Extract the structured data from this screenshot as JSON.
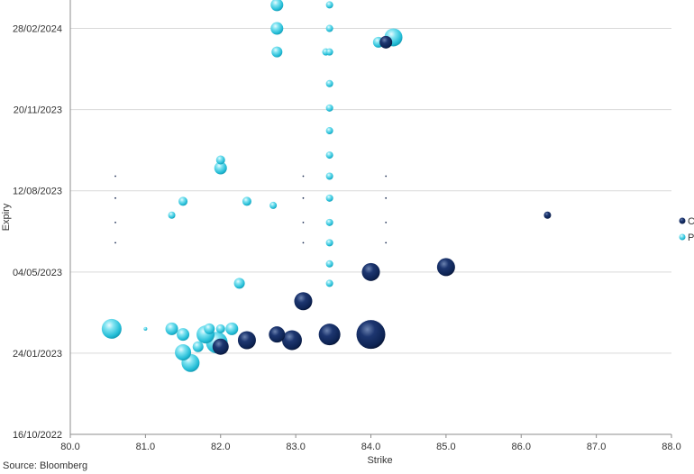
{
  "source": "Source: Bloomberg",
  "chart_data": {
    "type": "bubble",
    "title": "",
    "xlabel": "Strike",
    "ylabel": "Expiry",
    "xlim": [
      80.0,
      88.0
    ],
    "x_ticks": [
      "80.0",
      "81.0",
      "82.0",
      "83.0",
      "84.0",
      "85.0",
      "86.0",
      "87.0",
      "88.0"
    ],
    "y_ticks": [
      "16/10/2022",
      "24/01/2023",
      "04/05/2023",
      "12/08/2023",
      "20/11/2023",
      "28/02/2024"
    ],
    "grid": "horizontal",
    "legend_position": "right",
    "colors": {
      "C": "#0d2353",
      "P": "#2ec5dc",
      "grid": "#d9d9d9",
      "axis": "#8c8c8c"
    },
    "series": [
      {
        "name": "C",
        "points": [
          {
            "x": 82.0,
            "y": "2023-02-01",
            "size": 9
          },
          {
            "x": 82.35,
            "y": "2023-02-09",
            "size": 10
          },
          {
            "x": 82.75,
            "y": "2023-02-16",
            "size": 9
          },
          {
            "x": 82.95,
            "y": "2023-02-09",
            "size": 11
          },
          {
            "x": 83.1,
            "y": "2023-03-29",
            "size": 10
          },
          {
            "x": 83.45,
            "y": "2023-02-16",
            "size": 12
          },
          {
            "x": 84.0,
            "y": "2023-02-16",
            "size": 16
          },
          {
            "x": 84.0,
            "y": "2023-05-04",
            "size": 10
          },
          {
            "x": 85.0,
            "y": "2023-05-10",
            "size": 10
          },
          {
            "x": 84.2,
            "y": "2024-02-11",
            "size": 7
          },
          {
            "x": 86.35,
            "y": "2023-07-13",
            "size": 4
          }
        ]
      },
      {
        "name": "P",
        "points": [
          {
            "x": 80.55,
            "y": "2023-02-23",
            "size": 11
          },
          {
            "x": 81.0,
            "y": "2023-02-23",
            "size": 2
          },
          {
            "x": 81.35,
            "y": "2023-02-23",
            "size": 7
          },
          {
            "x": 81.5,
            "y": "2023-02-16",
            "size": 7
          },
          {
            "x": 81.5,
            "y": "2023-01-25",
            "size": 9
          },
          {
            "x": 81.6,
            "y": "2023-01-12",
            "size": 10
          },
          {
            "x": 81.7,
            "y": "2023-02-01",
            "size": 6
          },
          {
            "x": 81.8,
            "y": "2023-02-16",
            "size": 10
          },
          {
            "x": 81.85,
            "y": "2023-02-23",
            "size": 6
          },
          {
            "x": 81.95,
            "y": "2023-02-06",
            "size": 12
          },
          {
            "x": 82.0,
            "y": "2023-02-23",
            "size": 5
          },
          {
            "x": 82.15,
            "y": "2023-02-23",
            "size": 7
          },
          {
            "x": 82.25,
            "y": "2023-04-20",
            "size": 6
          },
          {
            "x": 81.35,
            "y": "2023-07-13",
            "size": 4
          },
          {
            "x": 81.5,
            "y": "2023-07-30",
            "size": 5
          },
          {
            "x": 82.0,
            "y": "2023-09-09",
            "size": 7
          },
          {
            "x": 82.0,
            "y": "2023-09-19",
            "size": 5
          },
          {
            "x": 82.35,
            "y": "2023-07-30",
            "size": 5
          },
          {
            "x": 82.7,
            "y": "2023-07-25",
            "size": 4
          },
          {
            "x": 82.75,
            "y": "2023-02-16",
            "size": 6
          },
          {
            "x": 82.75,
            "y": "2024-01-30",
            "size": 6
          },
          {
            "x": 82.75,
            "y": "2024-02-28",
            "size": 7
          },
          {
            "x": 82.75,
            "y": "2024-03-28",
            "size": 7
          },
          {
            "x": 83.4,
            "y": "2024-01-30",
            "size": 4
          },
          {
            "x": 83.45,
            "y": "2024-03-28",
            "size": 4
          },
          {
            "x": 83.45,
            "y": "2024-02-28",
            "size": 4
          },
          {
            "x": 83.45,
            "y": "2024-01-30",
            "size": 4
          },
          {
            "x": 83.45,
            "y": "2023-12-22",
            "size": 4
          },
          {
            "x": 83.45,
            "y": "2023-11-22",
            "size": 4
          },
          {
            "x": 83.45,
            "y": "2023-10-25",
            "size": 4
          },
          {
            "x": 83.45,
            "y": "2023-09-25",
            "size": 4
          },
          {
            "x": 83.45,
            "y": "2023-08-30",
            "size": 4
          },
          {
            "x": 83.45,
            "y": "2023-08-03",
            "size": 4
          },
          {
            "x": 83.45,
            "y": "2023-07-04",
            "size": 4
          },
          {
            "x": 83.45,
            "y": "2023-06-09",
            "size": 4
          },
          {
            "x": 83.45,
            "y": "2023-05-14",
            "size": 4
          },
          {
            "x": 83.45,
            "y": "2023-04-20",
            "size": 4
          },
          {
            "x": 84.1,
            "y": "2024-02-11",
            "size": 6
          },
          {
            "x": 84.3,
            "y": "2024-02-17",
            "size": 10
          }
        ]
      }
    ],
    "minor_markers": [
      {
        "x": 80.6,
        "y": "2023-08-30"
      },
      {
        "x": 80.6,
        "y": "2023-08-03"
      },
      {
        "x": 80.6,
        "y": "2023-07-04"
      },
      {
        "x": 80.6,
        "y": "2023-06-09"
      },
      {
        "x": 83.1,
        "y": "2023-08-30"
      },
      {
        "x": 83.1,
        "y": "2023-08-03"
      },
      {
        "x": 83.1,
        "y": "2023-07-04"
      },
      {
        "x": 83.1,
        "y": "2023-06-09"
      },
      {
        "x": 84.2,
        "y": "2023-08-30"
      },
      {
        "x": 84.2,
        "y": "2023-08-03"
      },
      {
        "x": 84.2,
        "y": "2023-07-04"
      },
      {
        "x": 84.2,
        "y": "2023-06-09"
      }
    ]
  }
}
